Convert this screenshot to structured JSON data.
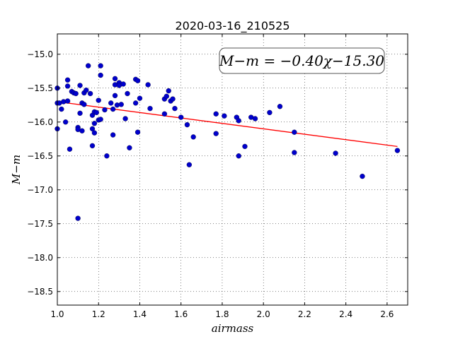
{
  "chart_data": {
    "type": "scatter",
    "title": "2020-03-16_210525",
    "xlabel": "airmass",
    "ylabel": "M−m",
    "xlim": [
      1.0,
      2.7
    ],
    "ylim": [
      -18.7,
      -14.7
    ],
    "y_inverted": true,
    "xticks": [
      1.0,
      1.2,
      1.4,
      1.6,
      1.8,
      2.0,
      2.2,
      2.4,
      2.6
    ],
    "xtick_labels": [
      "1.0",
      "1.2",
      "1.4",
      "1.6",
      "1.8",
      "2.0",
      "2.2",
      "2.4",
      "2.6"
    ],
    "yticks": [
      -15.0,
      -15.5,
      -16.0,
      -16.5,
      -17.0,
      -17.5,
      -18.0,
      -18.5
    ],
    "ytick_labels": [
      "−15.0",
      "−15.5",
      "−16.0",
      "−16.5",
      "−17.0",
      "−17.5",
      "−18.0",
      "−18.5"
    ],
    "grid": true,
    "annotation": "M−m = −0.40χ−15.30",
    "annotation_position": "top-right",
    "marker_color": "#0000cc",
    "fit_color": "#ff0000",
    "fit": {
      "slope": -0.4,
      "intercept": -15.3,
      "x_range": [
        1.0,
        2.65
      ]
    },
    "points": [
      {
        "x": 1.0,
        "y": -15.5
      },
      {
        "x": 1.0,
        "y": -15.72
      },
      {
        "x": 1.0,
        "y": -16.1
      },
      {
        "x": 1.01,
        "y": -15.72
      },
      {
        "x": 1.02,
        "y": -15.81
      },
      {
        "x": 1.03,
        "y": -15.7
      },
      {
        "x": 1.04,
        "y": -16.0
      },
      {
        "x": 1.05,
        "y": -15.38
      },
      {
        "x": 1.05,
        "y": -15.47
      },
      {
        "x": 1.05,
        "y": -15.69
      },
      {
        "x": 1.06,
        "y": -16.4
      },
      {
        "x": 1.07,
        "y": -15.55
      },
      {
        "x": 1.08,
        "y": -15.57
      },
      {
        "x": 1.09,
        "y": -15.58
      },
      {
        "x": 1.1,
        "y": -16.08
      },
      {
        "x": 1.1,
        "y": -16.11
      },
      {
        "x": 1.1,
        "y": -17.42
      },
      {
        "x": 1.11,
        "y": -15.87
      },
      {
        "x": 1.11,
        "y": -15.46
      },
      {
        "x": 1.12,
        "y": -16.13
      },
      {
        "x": 1.12,
        "y": -15.72
      },
      {
        "x": 1.13,
        "y": -15.57
      },
      {
        "x": 1.13,
        "y": -15.74
      },
      {
        "x": 1.14,
        "y": -15.53
      },
      {
        "x": 1.15,
        "y": -15.17
      },
      {
        "x": 1.16,
        "y": -15.58
      },
      {
        "x": 1.17,
        "y": -15.9
      },
      {
        "x": 1.17,
        "y": -16.1
      },
      {
        "x": 1.17,
        "y": -16.35
      },
      {
        "x": 1.18,
        "y": -15.85
      },
      {
        "x": 1.18,
        "y": -16.02
      },
      {
        "x": 1.18,
        "y": -16.16
      },
      {
        "x": 1.19,
        "y": -15.86
      },
      {
        "x": 1.2,
        "y": -15.68
      },
      {
        "x": 1.2,
        "y": -15.97
      },
      {
        "x": 1.21,
        "y": -15.17
      },
      {
        "x": 1.21,
        "y": -15.31
      },
      {
        "x": 1.21,
        "y": -15.96
      },
      {
        "x": 1.23,
        "y": -15.82
      },
      {
        "x": 1.24,
        "y": -16.5
      },
      {
        "x": 1.26,
        "y": -15.72
      },
      {
        "x": 1.27,
        "y": -15.81
      },
      {
        "x": 1.27,
        "y": -16.19
      },
      {
        "x": 1.28,
        "y": -15.45
      },
      {
        "x": 1.28,
        "y": -15.61
      },
      {
        "x": 1.28,
        "y": -15.36
      },
      {
        "x": 1.29,
        "y": -15.75
      },
      {
        "x": 1.3,
        "y": -15.42
      },
      {
        "x": 1.3,
        "y": -15.46
      },
      {
        "x": 1.31,
        "y": -15.74
      },
      {
        "x": 1.32,
        "y": -15.44
      },
      {
        "x": 1.33,
        "y": -15.95
      },
      {
        "x": 1.34,
        "y": -15.58
      },
      {
        "x": 1.35,
        "y": -16.38
      },
      {
        "x": 1.38,
        "y": -15.72
      },
      {
        "x": 1.38,
        "y": -15.37
      },
      {
        "x": 1.39,
        "y": -15.39
      },
      {
        "x": 1.39,
        "y": -16.15
      },
      {
        "x": 1.4,
        "y": -15.65
      },
      {
        "x": 1.44,
        "y": -15.45
      },
      {
        "x": 1.45,
        "y": -15.8
      },
      {
        "x": 1.52,
        "y": -15.66
      },
      {
        "x": 1.52,
        "y": -15.88
      },
      {
        "x": 1.53,
        "y": -15.62
      },
      {
        "x": 1.54,
        "y": -15.54
      },
      {
        "x": 1.55,
        "y": -15.69
      },
      {
        "x": 1.56,
        "y": -15.66
      },
      {
        "x": 1.57,
        "y": -15.8
      },
      {
        "x": 1.6,
        "y": -15.93
      },
      {
        "x": 1.63,
        "y": -16.04
      },
      {
        "x": 1.64,
        "y": -16.63
      },
      {
        "x": 1.66,
        "y": -16.22
      },
      {
        "x": 1.77,
        "y": -15.88
      },
      {
        "x": 1.77,
        "y": -16.17
      },
      {
        "x": 1.81,
        "y": -15.91
      },
      {
        "x": 1.87,
        "y": -15.93
      },
      {
        "x": 1.88,
        "y": -15.98
      },
      {
        "x": 1.88,
        "y": -16.5
      },
      {
        "x": 1.91,
        "y": -16.36
      },
      {
        "x": 1.94,
        "y": -15.93
      },
      {
        "x": 1.96,
        "y": -15.95
      },
      {
        "x": 2.03,
        "y": -15.86
      },
      {
        "x": 2.08,
        "y": -15.77
      },
      {
        "x": 2.15,
        "y": -16.15
      },
      {
        "x": 2.15,
        "y": -16.45
      },
      {
        "x": 2.35,
        "y": -16.46
      },
      {
        "x": 2.48,
        "y": -16.8
      },
      {
        "x": 2.65,
        "y": -16.42
      }
    ]
  }
}
